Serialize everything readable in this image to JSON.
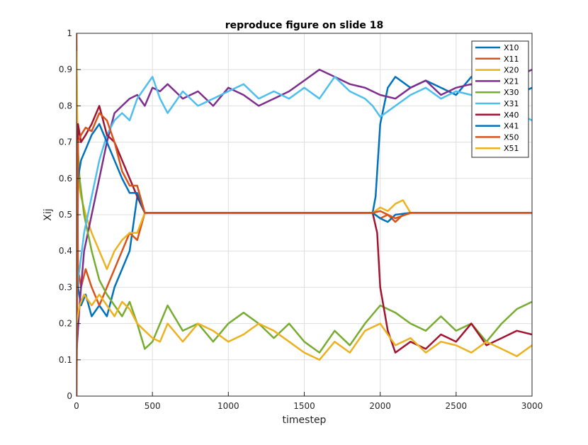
{
  "chart_data": {
    "type": "line",
    "title": "reproduce figure on slide 18",
    "xlabel": "timestep",
    "ylabel": "Xij",
    "xlim": [
      0,
      3000
    ],
    "ylim": [
      0,
      1
    ],
    "xticks": [
      0,
      500,
      1000,
      1500,
      2000,
      2500,
      3000
    ],
    "yticks": [
      0,
      0.1,
      0.2,
      0.3,
      0.4,
      0.5,
      0.6,
      0.7,
      0.8,
      0.9,
      1
    ],
    "xtick_labels": [
      "0",
      "500",
      "1000",
      "1500",
      "2000",
      "2500",
      "3000"
    ],
    "ytick_labels": [
      "0",
      "0.1",
      "0.2",
      "0.3",
      "0.4",
      "0.5",
      "0.6",
      "0.7",
      "0.8",
      "0.9",
      "1"
    ],
    "grid": true,
    "legend_position": "top-right",
    "series": [
      {
        "name": "X10",
        "color": "#0072BD",
        "x": [
          0,
          10,
          30,
          60,
          100,
          150,
          200,
          250,
          300,
          350,
          400,
          450,
          500,
          800,
          1200,
          1500,
          1800,
          1950,
          1970,
          2000,
          2050,
          2100,
          2200,
          2300,
          2400,
          2500,
          2600,
          2700,
          2800,
          2900,
          3000
        ],
        "y": [
          0.85,
          0.3,
          0.25,
          0.28,
          0.22,
          0.25,
          0.22,
          0.3,
          0.35,
          0.4,
          0.55,
          0.505,
          0.505,
          0.505,
          0.505,
          0.505,
          0.505,
          0.505,
          0.55,
          0.75,
          0.85,
          0.88,
          0.85,
          0.87,
          0.85,
          0.83,
          0.88,
          0.85,
          0.84,
          0.83,
          0.85
        ]
      },
      {
        "name": "X11",
        "color": "#D95319",
        "x": [
          0,
          10,
          30,
          60,
          100,
          150,
          200,
          250,
          300,
          350,
          400,
          450,
          500,
          800,
          1200,
          1500,
          1800,
          1950,
          2000,
          2050,
          2100,
          2150,
          2200,
          2500,
          3000
        ],
        "y": [
          1.0,
          0.35,
          0.3,
          0.35,
          0.3,
          0.25,
          0.3,
          0.35,
          0.4,
          0.45,
          0.43,
          0.505,
          0.505,
          0.505,
          0.505,
          0.505,
          0.505,
          0.505,
          0.49,
          0.5,
          0.48,
          0.5,
          0.505,
          0.505,
          0.505
        ]
      },
      {
        "name": "X20",
        "color": "#EDB120",
        "x": [
          0,
          10,
          30,
          60,
          100,
          150,
          200,
          250,
          300,
          350,
          400,
          450,
          500,
          800,
          1200,
          1500,
          1800,
          1950,
          2000,
          2050,
          2100,
          2150,
          2200,
          2500,
          3000
        ],
        "y": [
          0.95,
          0.6,
          0.55,
          0.5,
          0.45,
          0.4,
          0.35,
          0.4,
          0.43,
          0.45,
          0.45,
          0.505,
          0.505,
          0.505,
          0.505,
          0.505,
          0.505,
          0.505,
          0.52,
          0.51,
          0.53,
          0.54,
          0.505,
          0.505,
          0.505
        ]
      },
      {
        "name": "X21",
        "color": "#7E2F8E",
        "x": [
          0,
          20,
          50,
          100,
          150,
          200,
          250,
          300,
          350,
          400,
          450,
          500,
          550,
          600,
          700,
          800,
          900,
          1000,
          1100,
          1200,
          1300,
          1400,
          1500,
          1600,
          1700,
          1800,
          1900,
          2000,
          2100,
          2200,
          2300,
          2400,
          2500,
          2600,
          2700,
          2800,
          2900,
          3000
        ],
        "y": [
          0.12,
          0.25,
          0.4,
          0.5,
          0.6,
          0.7,
          0.78,
          0.8,
          0.82,
          0.83,
          0.8,
          0.85,
          0.84,
          0.86,
          0.82,
          0.84,
          0.8,
          0.85,
          0.83,
          0.8,
          0.82,
          0.84,
          0.87,
          0.9,
          0.88,
          0.86,
          0.85,
          0.83,
          0.82,
          0.85,
          0.87,
          0.83,
          0.85,
          0.86,
          0.84,
          0.85,
          0.88,
          0.9
        ]
      },
      {
        "name": "X30",
        "color": "#77AC30",
        "x": [
          0,
          20,
          50,
          100,
          150,
          200,
          250,
          300,
          350,
          400,
          450,
          500,
          550,
          600,
          700,
          800,
          900,
          1000,
          1100,
          1200,
          1300,
          1400,
          1500,
          1600,
          1700,
          1800,
          1900,
          2000,
          2100,
          2200,
          2300,
          2400,
          2500,
          2600,
          2700,
          2800,
          2900,
          3000
        ],
        "y": [
          0.75,
          0.6,
          0.5,
          0.4,
          0.32,
          0.28,
          0.25,
          0.22,
          0.26,
          0.2,
          0.13,
          0.15,
          0.2,
          0.25,
          0.18,
          0.2,
          0.15,
          0.2,
          0.23,
          0.2,
          0.16,
          0.2,
          0.15,
          0.12,
          0.18,
          0.14,
          0.2,
          0.25,
          0.23,
          0.2,
          0.18,
          0.22,
          0.18,
          0.2,
          0.15,
          0.2,
          0.24,
          0.26
        ]
      },
      {
        "name": "X31",
        "color": "#4DBEEE",
        "x": [
          0,
          20,
          50,
          100,
          150,
          200,
          250,
          300,
          350,
          400,
          450,
          500,
          550,
          600,
          700,
          800,
          900,
          1000,
          1100,
          1200,
          1300,
          1400,
          1500,
          1600,
          1700,
          1800,
          1900,
          1950,
          2000,
          2100,
          2200,
          2300,
          2400,
          2500,
          2600,
          2700,
          2800,
          2900,
          3000
        ],
        "y": [
          0.3,
          0.35,
          0.45,
          0.55,
          0.65,
          0.72,
          0.76,
          0.78,
          0.76,
          0.82,
          0.85,
          0.88,
          0.82,
          0.78,
          0.84,
          0.8,
          0.82,
          0.84,
          0.86,
          0.82,
          0.84,
          0.82,
          0.85,
          0.82,
          0.88,
          0.84,
          0.82,
          0.8,
          0.77,
          0.8,
          0.83,
          0.85,
          0.82,
          0.84,
          0.83,
          0.82,
          0.81,
          0.78,
          0.76
        ]
      },
      {
        "name": "X40",
        "color": "#A2142F",
        "x": [
          0,
          10,
          30,
          60,
          100,
          150,
          200,
          250,
          300,
          350,
          400,
          450,
          500,
          800,
          1200,
          1500,
          1800,
          1950,
          1980,
          2000,
          2050,
          2100,
          2200,
          2300,
          2400,
          2500,
          2600,
          2700,
          2800,
          2900,
          3000
        ],
        "y": [
          0.1,
          0.75,
          0.7,
          0.72,
          0.75,
          0.8,
          0.72,
          0.7,
          0.65,
          0.6,
          0.55,
          0.505,
          0.505,
          0.505,
          0.505,
          0.505,
          0.505,
          0.505,
          0.45,
          0.3,
          0.18,
          0.12,
          0.15,
          0.13,
          0.17,
          0.15,
          0.2,
          0.14,
          0.16,
          0.18,
          0.17
        ]
      },
      {
        "name": "X41",
        "color": "#0072BD",
        "x": [
          0,
          10,
          30,
          60,
          100,
          150,
          200,
          250,
          300,
          350,
          400,
          450,
          500,
          800,
          1200,
          1500,
          1800,
          1950,
          2000,
          2050,
          2100,
          2200,
          2500,
          3000
        ],
        "y": [
          0.0,
          0.6,
          0.65,
          0.68,
          0.72,
          0.75,
          0.7,
          0.65,
          0.6,
          0.56,
          0.56,
          0.505,
          0.505,
          0.505,
          0.505,
          0.505,
          0.505,
          0.505,
          0.49,
          0.48,
          0.5,
          0.505,
          0.505,
          0.505
        ]
      },
      {
        "name": "X50",
        "color": "#D95319",
        "x": [
          0,
          10,
          30,
          60,
          100,
          150,
          200,
          250,
          300,
          350,
          400,
          450,
          500,
          800,
          1200,
          1500,
          1800,
          1950,
          2000,
          2050,
          2100,
          2200,
          2500,
          3000
        ],
        "y": [
          0.0,
          0.7,
          0.72,
          0.74,
          0.73,
          0.78,
          0.76,
          0.7,
          0.62,
          0.58,
          0.58,
          0.505,
          0.505,
          0.505,
          0.505,
          0.505,
          0.505,
          0.505,
          0.51,
          0.5,
          0.49,
          0.505,
          0.505,
          0.505
        ]
      },
      {
        "name": "X51",
        "color": "#EDB120",
        "x": [
          0,
          20,
          50,
          100,
          150,
          200,
          250,
          300,
          350,
          400,
          450,
          500,
          550,
          600,
          700,
          800,
          900,
          1000,
          1100,
          1200,
          1300,
          1400,
          1500,
          1600,
          1700,
          1800,
          1900,
          2000,
          2100,
          2200,
          2300,
          2400,
          2500,
          2600,
          2700,
          2800,
          2900,
          3000
        ],
        "y": [
          0.2,
          0.25,
          0.28,
          0.25,
          0.28,
          0.25,
          0.22,
          0.26,
          0.24,
          0.2,
          0.18,
          0.16,
          0.15,
          0.2,
          0.15,
          0.2,
          0.18,
          0.15,
          0.17,
          0.2,
          0.18,
          0.15,
          0.12,
          0.1,
          0.15,
          0.12,
          0.18,
          0.2,
          0.14,
          0.16,
          0.12,
          0.15,
          0.14,
          0.12,
          0.15,
          0.13,
          0.11,
          0.14
        ]
      }
    ]
  }
}
